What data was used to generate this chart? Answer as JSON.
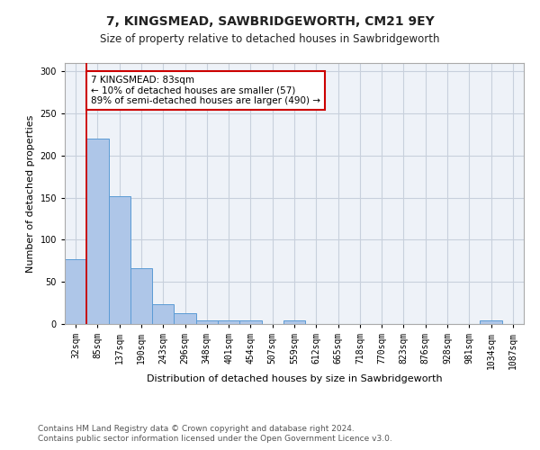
{
  "title1": "7, KINGSMEAD, SAWBRIDGEWORTH, CM21 9EY",
  "title2": "Size of property relative to detached houses in Sawbridgeworth",
  "xlabel": "Distribution of detached houses by size in Sawbridgeworth",
  "ylabel": "Number of detached properties",
  "bin_labels": [
    "32sqm",
    "85sqm",
    "137sqm",
    "190sqm",
    "243sqm",
    "296sqm",
    "348sqm",
    "401sqm",
    "454sqm",
    "507sqm",
    "559sqm",
    "612sqm",
    "665sqm",
    "718sqm",
    "770sqm",
    "823sqm",
    "876sqm",
    "928sqm",
    "981sqm",
    "1034sqm",
    "1087sqm"
  ],
  "bar_heights": [
    77,
    220,
    152,
    66,
    24,
    13,
    4,
    4,
    4,
    0,
    4,
    0,
    0,
    0,
    0,
    0,
    0,
    0,
    0,
    4,
    0
  ],
  "bar_color": "#aec6e8",
  "bar_edge_color": "#5b9bd5",
  "bar_width": 1.0,
  "property_bin_index": 1,
  "vline_color": "#cc0000",
  "annotation_text": "7 KINGSMEAD: 83sqm\n← 10% of detached houses are smaller (57)\n89% of semi-detached houses are larger (490) →",
  "annotation_box_color": "#ffffff",
  "annotation_border_color": "#cc0000",
  "ylim": [
    0,
    310
  ],
  "yticks": [
    0,
    50,
    100,
    150,
    200,
    250,
    300
  ],
  "grid_color": "#c8d0dc",
  "background_color": "#eef2f8",
  "footer1": "Contains HM Land Registry data © Crown copyright and database right 2024.",
  "footer2": "Contains public sector information licensed under the Open Government Licence v3.0.",
  "title1_fontsize": 10,
  "title2_fontsize": 8.5,
  "xlabel_fontsize": 8,
  "ylabel_fontsize": 8,
  "tick_fontsize": 7,
  "annotation_fontsize": 7.5,
  "footer_fontsize": 6.5
}
